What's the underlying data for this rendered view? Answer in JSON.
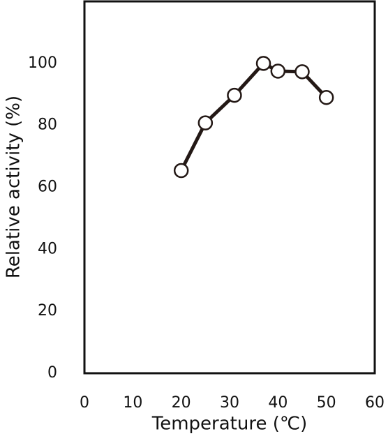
{
  "chart_data": {
    "type": "line",
    "x_label": "Temperature (℃)",
    "y_label": "Relative activity (%)",
    "series": [
      {
        "color": "#231815",
        "x": [
          20,
          25,
          31,
          37,
          40,
          45,
          50
        ],
        "values": [
          65.4,
          80.8,
          89.7,
          100,
          97.5,
          97.3,
          89
        ]
      }
    ],
    "xlim": [
      0,
      60
    ],
    "xticks": [
      0,
      10,
      20,
      30,
      40,
      50,
      60
    ],
    "ylim": [
      0,
      120
    ],
    "yticks": [
      0,
      20,
      40,
      60,
      80,
      100
    ],
    "grid": false
  }
}
